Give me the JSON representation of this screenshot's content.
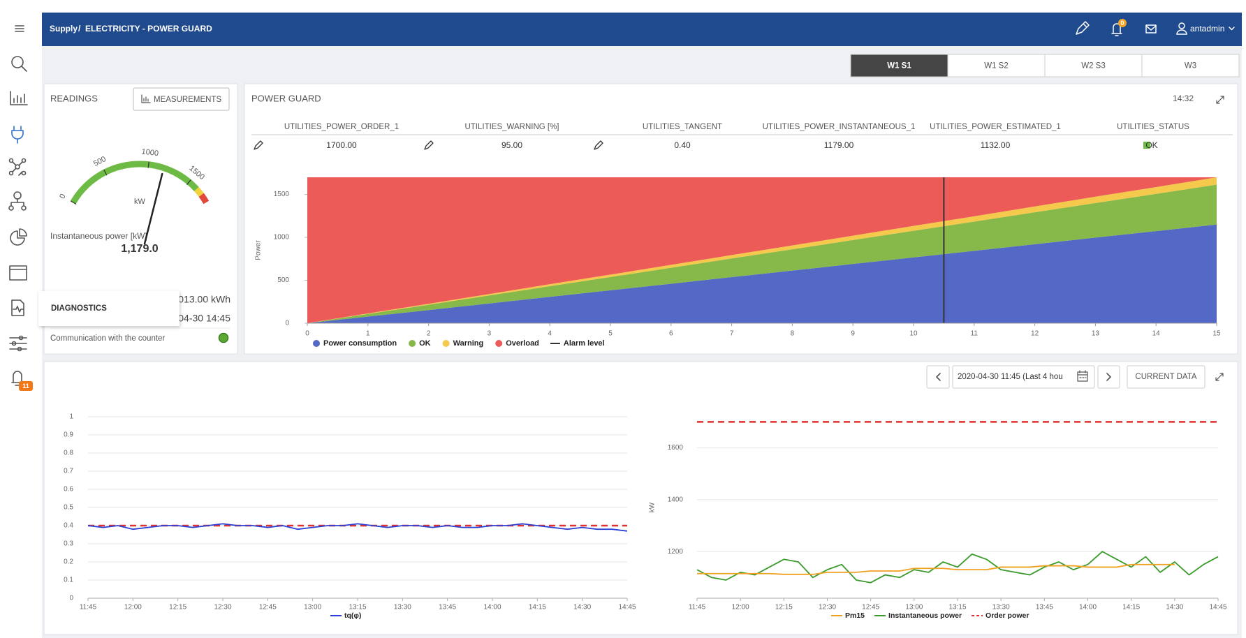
{
  "header": {
    "crumb_root": "Supply",
    "separator": "/",
    "crumb_page": "ELECTRICITY - POWER GUARD",
    "notifications": "0",
    "user": "antadmin"
  },
  "sidebar": {
    "alerts_badge": "11",
    "tooltip": "DIAGNOSTICS"
  },
  "tabs": [
    "W1 S1",
    "W1 S2",
    "W2 S3",
    "W3"
  ],
  "active_tab": 0,
  "readings": {
    "title": "READINGS",
    "button": "MEASUREMENTS",
    "gauge": {
      "min": 0,
      "max": 1800,
      "ticks": [
        0,
        500,
        1000,
        1500
      ],
      "unit": "kW",
      "value": 1179,
      "bands": [
        {
          "from": 0,
          "to": 1615,
          "color": "#6dbb45"
        },
        {
          "from": 1615,
          "to": 1700,
          "color": "#f0d23c"
        },
        {
          "from": 1700,
          "to": 1800,
          "color": "#e0483c"
        }
      ]
    },
    "instantaneous_label": "Instantaneous power [kW]",
    "instantaneous_value": "1,179.0",
    "energy": "013.00 kWh",
    "date": "04-30 14:45",
    "communication_label": "Communication with the counter",
    "communication_color": "#5aa832"
  },
  "power_guard": {
    "title": "POWER GUARD",
    "time": "14:32",
    "table": {
      "columns": [
        "UTILITIES_POWER_ORDER_1",
        "UTILITIES_WARNING [%]",
        "UTILITIES_TANGENT",
        "UTILITIES_POWER_INSTANTANEOUS_1",
        "UTILITIES_POWER_ESTIMATED_1",
        "UTILITIES_STATUS"
      ],
      "values": [
        "1700.00",
        "95.00",
        "0.40",
        "1179.00",
        "1132.00",
        "OK"
      ],
      "status_color": "#6dbb45"
    }
  },
  "history": {
    "date_range": "2020-04-30 11:45 (Last 4 hou",
    "current_button": "CURRENT DATA"
  },
  "chart_data": [
    {
      "type": "area",
      "stacked": true,
      "y_label": "Power",
      "x": [
        0,
        1,
        2,
        3,
        4,
        5,
        6,
        7,
        8,
        9,
        10,
        11,
        12,
        13,
        14,
        15
      ],
      "xlim": [
        0,
        15
      ],
      "xticks": [
        0,
        1,
        2,
        3,
        4,
        5,
        6,
        7,
        8,
        9,
        10,
        11,
        12,
        13,
        14,
        15
      ],
      "ylim": [
        0,
        1700
      ],
      "yticks": [
        0,
        500,
        1000,
        1500
      ],
      "legend": "bottom-left",
      "series": [
        {
          "name": "Power consumption",
          "color": "#5468c6",
          "values": [
            0,
            77,
            153,
            230,
            307,
            383,
            460,
            537,
            613,
            690,
            767,
            843,
            920,
            997,
            1073,
            1150
          ]
        },
        {
          "name": "OK",
          "color": "#86b84a",
          "values": [
            0,
            31,
            62,
            93,
            124,
            155,
            186,
            217,
            248,
            279,
            310,
            341,
            372,
            403,
            434,
            465
          ]
        },
        {
          "name": "Warning",
          "color": "#f4c94c",
          "values": [
            0,
            6,
            11,
            17,
            23,
            28,
            34,
            40,
            45,
            51,
            57,
            62,
            68,
            74,
            79,
            85
          ]
        },
        {
          "name": "Overload",
          "color": "#ec5b58",
          "values": [
            1700,
            1586,
            1474,
            1360,
            1246,
            1134,
            1020,
            906,
            794,
            680,
            566,
            454,
            340,
            226,
            114,
            0
          ]
        }
      ],
      "alarm_level": {
        "name": "Alarm level",
        "color": "#333333",
        "x": 10.5
      }
    },
    {
      "type": "line",
      "categories": [
        "11:45",
        null,
        null,
        "12:00",
        null,
        null,
        "12:15",
        null,
        null,
        "12:30",
        null,
        null,
        "12:45",
        null,
        null,
        "13:00",
        null,
        null,
        "13:15",
        null,
        null,
        "13:30",
        null,
        null,
        "13:45",
        null,
        null,
        "14:00",
        null,
        null,
        "14:15",
        null,
        null,
        "14:30",
        null,
        null,
        "14:45"
      ],
      "ylim": [
        0,
        1
      ],
      "yticks": [
        0,
        0.1,
        0.2,
        0.3,
        0.4,
        0.5,
        0.6,
        0.7,
        0.8,
        0.9,
        1
      ],
      "grid": true,
      "series": [
        {
          "name": "tq(φ)",
          "color": "#2b3fd6",
          "values": [
            0.4,
            0.39,
            0.4,
            0.38,
            0.39,
            0.4,
            0.4,
            0.39,
            0.4,
            0.41,
            0.4,
            0.4,
            0.39,
            0.4,
            0.38,
            0.39,
            0.4,
            0.4,
            0.41,
            0.4,
            0.39,
            0.4,
            0.4,
            0.39,
            0.4,
            0.39,
            0.39,
            0.4,
            0.4,
            0.41,
            0.4,
            0.39,
            0.38,
            0.39,
            0.38,
            0.38,
            0.37
          ]
        }
      ],
      "reference_line": {
        "value": 0.4,
        "color": "#e03030"
      }
    },
    {
      "type": "line",
      "y_label": "kW",
      "categories": [
        "11:45",
        null,
        null,
        "12:00",
        null,
        null,
        "12:15",
        null,
        null,
        "12:30",
        null,
        null,
        "12:45",
        null,
        null,
        "13:00",
        null,
        null,
        "13:15",
        null,
        null,
        "13:30",
        null,
        null,
        "13:45",
        null,
        null,
        "14:00",
        null,
        null,
        "14:15",
        null,
        null,
        "14:30",
        null,
        null,
        "14:45"
      ],
      "ylim": [
        1020,
        1720
      ],
      "yticks": [
        1200,
        1400,
        1600
      ],
      "grid": true,
      "series": [
        {
          "name": "Pm15",
          "color": "#f0a020",
          "values": [
            1115,
            1115,
            1115,
            1115,
            1115,
            1115,
            1112,
            1112,
            1112,
            1120,
            1120,
            1120,
            1125,
            1125,
            1125,
            1135,
            1135,
            1135,
            1130,
            1130,
            1130,
            1140,
            1140,
            1140,
            1145,
            1145,
            1145,
            1140,
            1140,
            1140,
            1150,
            1150,
            1150,
            1150,
            null,
            null,
            null
          ]
        },
        {
          "name": "Instantaneous power",
          "color": "#3a9a2a",
          "values": [
            1130,
            1100,
            1090,
            1120,
            1110,
            1140,
            1170,
            1160,
            1100,
            1130,
            1150,
            1090,
            1080,
            1110,
            1100,
            1130,
            1120,
            1160,
            1140,
            1190,
            1170,
            1130,
            1120,
            1110,
            1140,
            1160,
            1130,
            1150,
            1200,
            1170,
            1140,
            1180,
            1120,
            1160,
            1110,
            1150,
            1180
          ]
        },
        {
          "name": "Order power",
          "color": "#e03030",
          "dashed": true,
          "values": [
            1700,
            1700,
            1700,
            1700,
            1700,
            1700,
            1700,
            1700,
            1700,
            1700,
            1700,
            1700,
            1700,
            1700,
            1700,
            1700,
            1700,
            1700,
            1700,
            1700,
            1700,
            1700,
            1700,
            1700,
            1700,
            1700,
            1700,
            1700,
            1700,
            1700,
            1700,
            1700,
            1700,
            1700,
            1700,
            1700,
            1700
          ]
        }
      ]
    }
  ]
}
